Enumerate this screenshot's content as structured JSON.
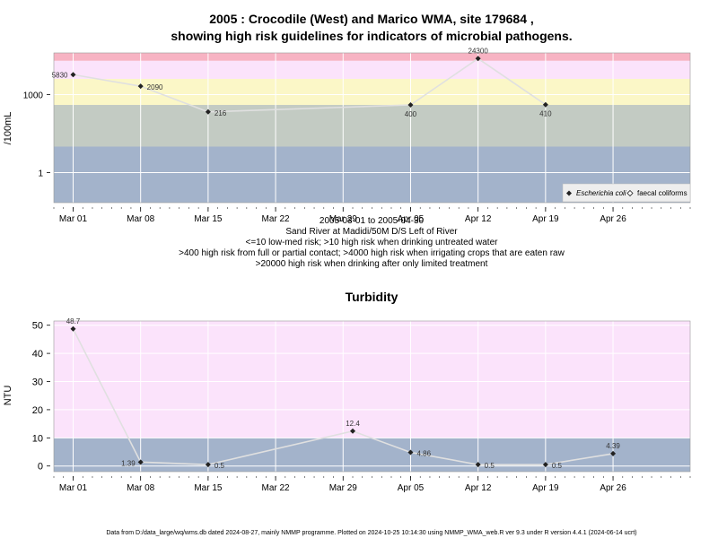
{
  "chart_data": [
    {
      "type": "line",
      "title": "2005 : Crocodile (West) and Marico WMA, site 179684 ,",
      "subtitle": "showing high risk guidelines for indicators of microbial pathogens.",
      "ylabel": "/100mL",
      "yscale": "log",
      "yticks": [
        1,
        1000
      ],
      "ylim": [
        0.07,
        40000
      ],
      "xlim": [
        "2005-02-27",
        "2005-05-04"
      ],
      "xticks": [
        "Mar 01",
        "Mar 08",
        "Mar 15",
        "Mar 22",
        "Mar 29",
        "Apr 05",
        "Apr 12",
        "Apr 19",
        "Apr 26"
      ],
      "xtick_dates": [
        "2005-03-01",
        "2005-03-08",
        "2005-03-15",
        "2005-03-22",
        "2005-03-29",
        "2005-04-05",
        "2005-04-12",
        "2005-04-19",
        "2005-04-26"
      ],
      "grid": true,
      "bands": [
        {
          "from": 0.07,
          "to": 10,
          "color": "#a3b3cb"
        },
        {
          "from": 10,
          "to": 400,
          "color": "#c3cbc3"
        },
        {
          "from": 400,
          "to": 4000,
          "color": "#fbf7c7"
        },
        {
          "from": 4000,
          "to": 20000,
          "color": "#fbe3fb"
        },
        {
          "from": 20000,
          "to": 40000,
          "color": "#f7b3c3"
        }
      ],
      "series": [
        {
          "name": "Escherichia coli",
          "x": [
            "2005-03-01",
            "2005-03-08",
            "2005-03-15",
            "2005-04-05",
            "2005-04-12",
            "2005-04-19"
          ],
          "values": [
            5830,
            2090,
            216,
            400,
            24300,
            410
          ],
          "labels": [
            "5830",
            "2090",
            "216",
            "400",
            "24300",
            "410"
          ]
        }
      ],
      "legend": {
        "position": "bottom-right",
        "entries": [
          "Escherichia coli",
          "faecal coliforms"
        ]
      },
      "caption": [
        "2005-03-01 to 2005-04-30",
        "Sand River at Madidi/50M D/S Left of River",
        "<=10 low-med risk; >10 high risk when drinking untreated water",
        ">400 high risk from full or partial contact; >4000 high risk when irrigating crops that are eaten raw",
        ">20000 high risk when drinking after only limited treatment"
      ]
    },
    {
      "type": "line",
      "title": "Turbidity",
      "ylabel": "NTU",
      "yticks": [
        0,
        10,
        20,
        30,
        40,
        50
      ],
      "ylim": [
        -2,
        51.5
      ],
      "xlim": [
        "2005-02-27",
        "2005-05-04"
      ],
      "xticks": [
        "Mar 01",
        "Mar 08",
        "Mar 15",
        "Mar 22",
        "Mar 29",
        "Apr 05",
        "Apr 12",
        "Apr 19",
        "Apr 26"
      ],
      "xtick_dates": [
        "2005-03-01",
        "2005-03-08",
        "2005-03-15",
        "2005-03-22",
        "2005-03-29",
        "2005-04-05",
        "2005-04-12",
        "2005-04-19",
        "2005-04-26"
      ],
      "grid": true,
      "bands": [
        {
          "from": -2,
          "to": 10,
          "color": "#a3b3cb"
        },
        {
          "from": 10,
          "to": 51.5,
          "color": "#fbe3fb"
        }
      ],
      "series": [
        {
          "x": [
            "2005-03-01",
            "2005-03-08",
            "2005-03-15",
            "2005-03-30",
            "2005-04-05",
            "2005-04-12",
            "2005-04-19",
            "2005-04-26"
          ],
          "values": [
            48.7,
            1.39,
            0.5,
            12.4,
            4.86,
            0.5,
            0.5,
            4.39
          ],
          "labels": [
            "48.7",
            "1.39",
            "0.5",
            "12.4",
            "4.86",
            "0.5",
            "0.5",
            "4.39"
          ]
        }
      ]
    }
  ],
  "footer": "Data from D:/data_large/wq/wms.db dated 2024-08-27, mainly NMMP programme. Plotted on 2024-10-25 10:14:30 using NMMP_WMA_web.R ver 9.3 under R version 4.4.1 (2024-06-14 ucrt)",
  "colors": {
    "line": "#e0e0e0",
    "marker": "#222222",
    "grid": "#ffffff"
  }
}
